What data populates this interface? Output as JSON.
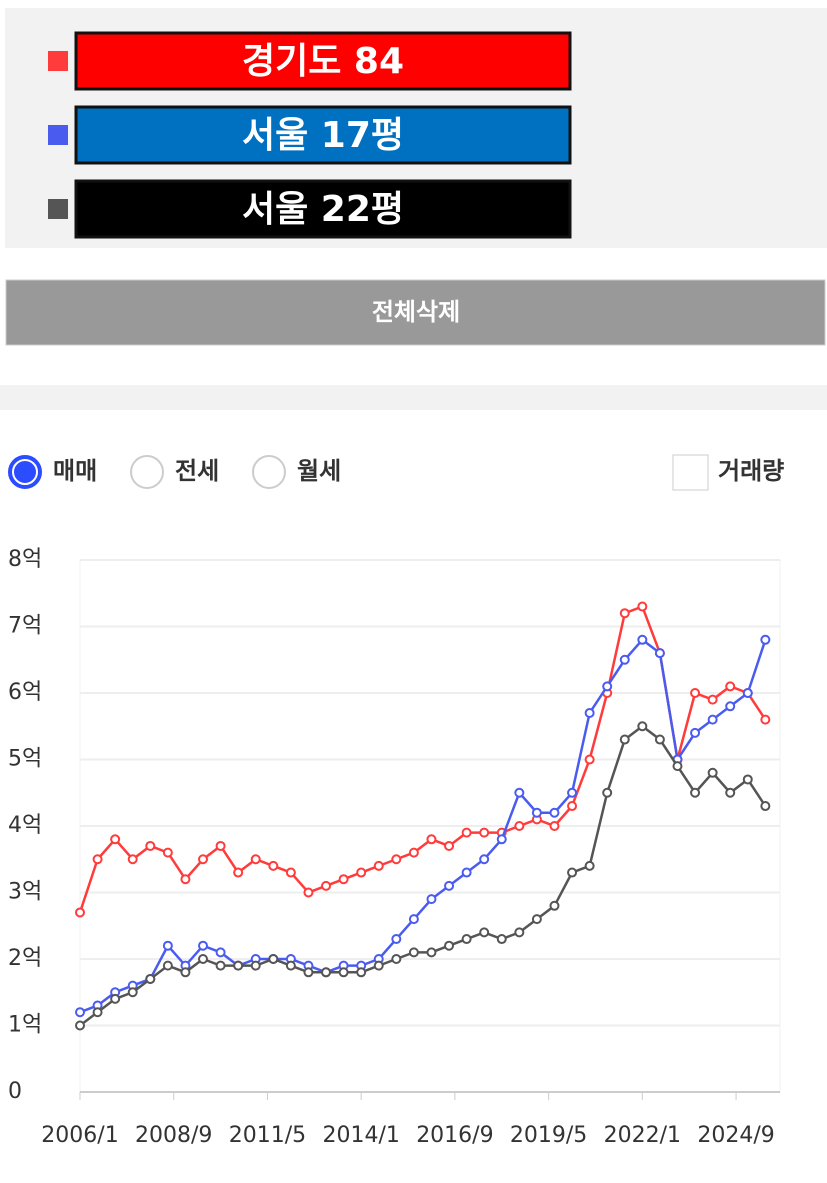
{
  "legend_boxes": [
    "#ff0000",
    "#0070c0",
    "#000000"
  ],
  "button": {
    "label": "전체삭제"
  },
  "tabs": {
    "options": [
      "매매",
      "전세",
      "월세"
    ],
    "selected": 0
  },
  "checkbox": {
    "label": "거래량"
  },
  "chart_data": {
    "type": "line",
    "x": [
      "2006/1",
      "2006/7",
      "2007/1",
      "2007/7",
      "2008/1",
      "2008/7",
      "2009/1",
      "2009/7",
      "2010/1",
      "2010/7",
      "2011/1",
      "2011/7",
      "2012/1",
      "2012/7",
      "2013/1",
      "2013/7",
      "2014/1",
      "2014/7",
      "2015/1",
      "2015/7",
      "2016/1",
      "2016/7",
      "2017/1",
      "2017/7",
      "2018/1",
      "2018/7",
      "2019/1",
      "2019/7",
      "2020/1",
      "2020/7",
      "2021/1",
      "2021/7",
      "2022/1",
      "2022/7",
      "2023/1",
      "2023/7",
      "2024/1",
      "2024/7",
      "2025/1",
      "2025/7"
    ],
    "series": [
      {
        "name": "경기도 84",
        "color": "#ff3b3b",
        "values": [
          2.7,
          3.5,
          3.8,
          3.5,
          3.7,
          3.6,
          3.2,
          3.5,
          3.7,
          3.3,
          3.5,
          3.4,
          3.3,
          3.0,
          3.1,
          3.2,
          3.3,
          3.4,
          3.5,
          3.6,
          3.8,
          3.7,
          3.9,
          3.9,
          3.9,
          4.0,
          4.1,
          4.0,
          4.3,
          5.0,
          6.0,
          7.2,
          7.3,
          6.6,
          5.0,
          6.0,
          5.9,
          6.1,
          6.0,
          5.6
        ]
      },
      {
        "name": "서울 17평",
        "color": "#4a5cf0",
        "values": [
          1.2,
          1.3,
          1.5,
          1.6,
          1.7,
          2.2,
          1.9,
          2.2,
          2.1,
          1.9,
          2.0,
          2.0,
          2.0,
          1.9,
          1.8,
          1.9,
          1.9,
          2.0,
          2.3,
          2.6,
          2.9,
          3.1,
          3.3,
          3.5,
          3.8,
          4.5,
          4.2,
          4.2,
          4.5,
          5.7,
          6.1,
          6.5,
          6.8,
          6.6,
          5.0,
          5.4,
          5.6,
          5.8,
          6.0,
          6.8
        ]
      },
      {
        "name": "서울 22평",
        "color": "#555555",
        "values": [
          1.0,
          1.2,
          1.4,
          1.5,
          1.7,
          1.9,
          1.8,
          2.0,
          1.9,
          1.9,
          1.9,
          2.0,
          1.9,
          1.8,
          1.8,
          1.8,
          1.8,
          1.9,
          2.0,
          2.1,
          2.1,
          2.2,
          2.3,
          2.4,
          2.3,
          2.4,
          2.6,
          2.8,
          3.3,
          3.4,
          4.5,
          5.3,
          5.5,
          5.3,
          4.9,
          4.5,
          4.8,
          4.5,
          4.7,
          4.3
        ]
      }
    ],
    "xlim": [
      "2006/1",
      "2025/12"
    ],
    "xticks": [
      "2006/1",
      "2008/9",
      "2011/5",
      "2014/1",
      "2016/9",
      "2019/5",
      "2022/1",
      "2024/9"
    ],
    "ylim": [
      0,
      8
    ],
    "yticks": [
      0,
      {
        "value": 1,
        "label": "1억"
      },
      {
        "value": 2,
        "label": "2억"
      },
      {
        "value": 3,
        "label": "3억"
      },
      {
        "value": 4,
        "label": "4억"
      },
      {
        "value": 5,
        "label": "5억"
      },
      {
        "value": 6,
        "label": "6억"
      },
      {
        "value": 7,
        "label": "7억"
      },
      {
        "value": 8,
        "label": "8억"
      }
    ],
    "grid": true
  }
}
